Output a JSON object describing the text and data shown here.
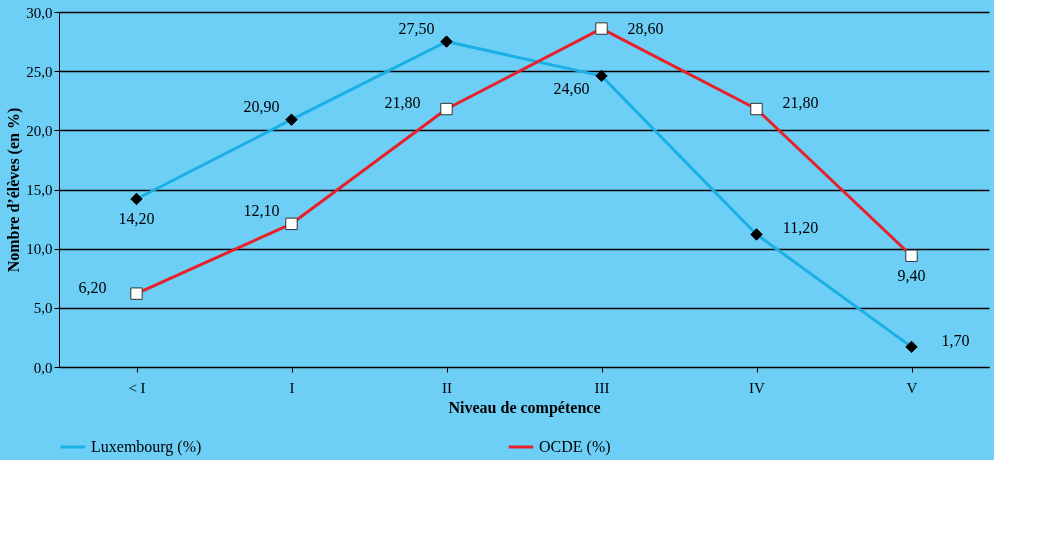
{
  "chart_data": {
    "type": "line",
    "xlabel": "Niveau de compétence",
    "ylabel": "Nombre d’élèves (en %)",
    "categories": [
      "< I",
      "I",
      "II",
      "III",
      "IV",
      "V"
    ],
    "series": [
      {
        "name": "Luxembourg (%)",
        "color": "#1ab0e6",
        "marker": "diamond",
        "values": [
          14.2,
          20.9,
          27.5,
          24.6,
          11.2,
          1.7
        ],
        "value_labels": [
          "14,20",
          "20,90",
          "27,50",
          "24,60",
          "11,20",
          "1,70"
        ]
      },
      {
        "name": "OCDE (%)",
        "color": "#e8202a",
        "marker": "square",
        "values": [
          6.2,
          12.1,
          21.8,
          28.6,
          21.8,
          9.4
        ],
        "value_labels": [
          "6,20",
          "12,10",
          "21,80",
          "28,60",
          "21,80",
          "9,40"
        ]
      }
    ],
    "ylim": [
      0,
      30
    ],
    "yticks": [
      {
        "value": 0,
        "label": "0,0"
      },
      {
        "value": 5,
        "label": "5,0"
      },
      {
        "value": 10,
        "label": "10,0"
      },
      {
        "value": 15,
        "label": "15,0"
      },
      {
        "value": 20,
        "label": "20,0"
      },
      {
        "value": 25,
        "label": "25,0"
      },
      {
        "value": 30,
        "label": "30,0"
      }
    ],
    "grid": "y",
    "legend": "bottom",
    "line_style": "solid"
  }
}
